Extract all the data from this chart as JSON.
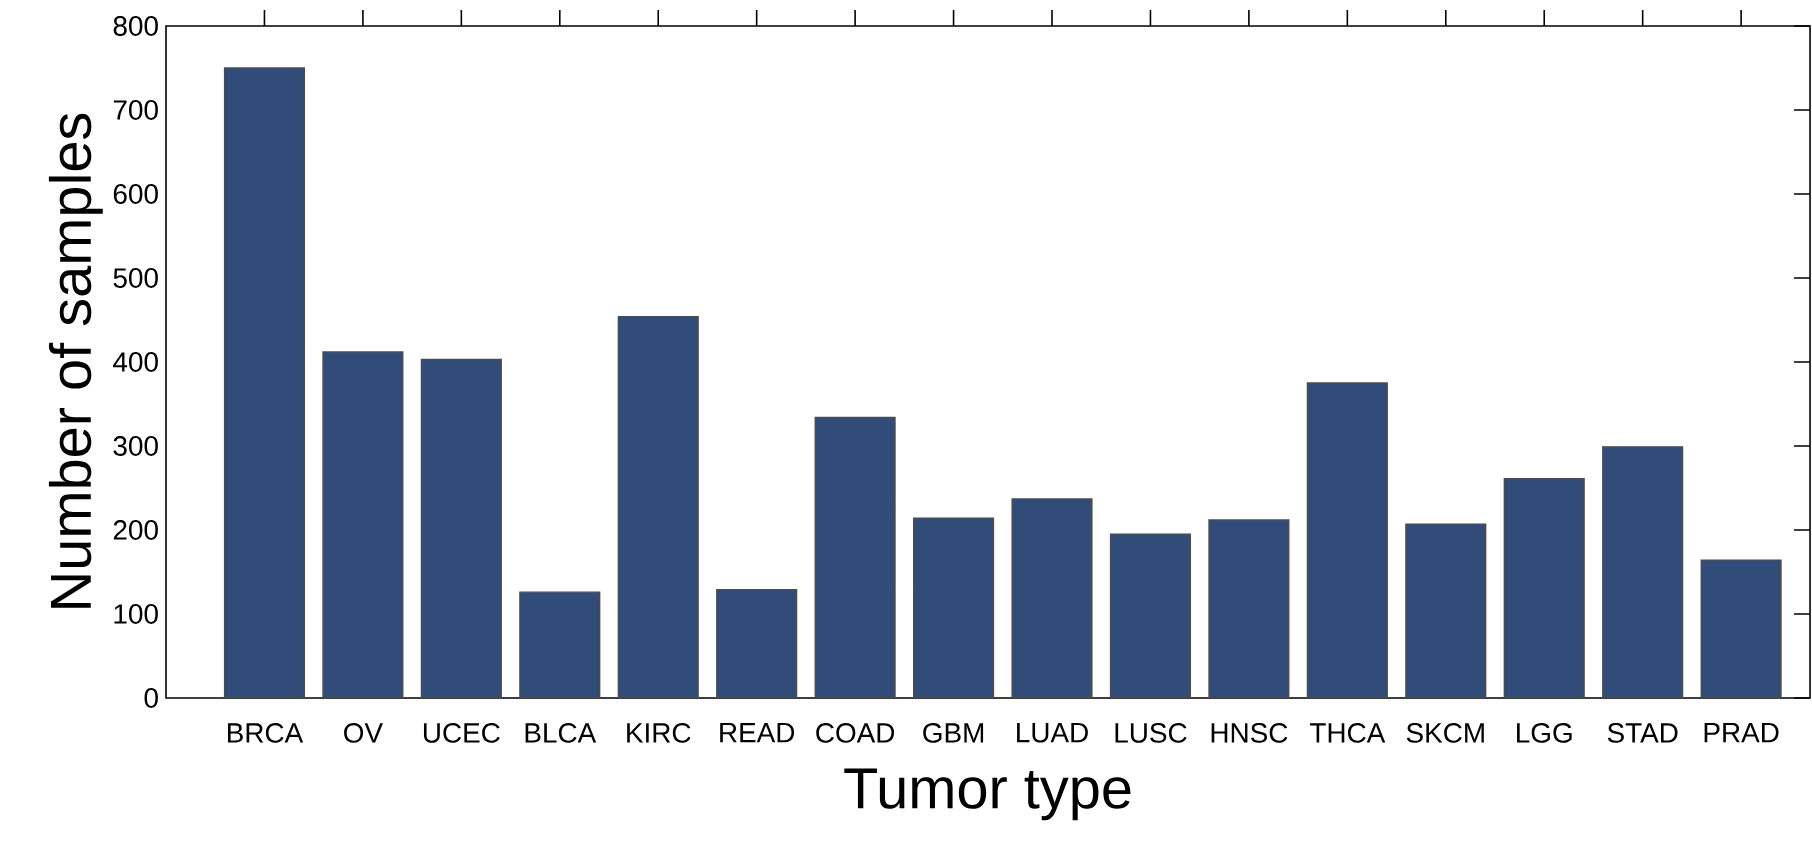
{
  "chart_data": {
    "type": "bar",
    "xlabel": "Tumor type",
    "ylabel": "Number of samples",
    "categories": [
      "BRCA",
      "OV",
      "UCEC",
      "BLCA",
      "KIRC",
      "READ",
      "COAD",
      "GBM",
      "LUAD",
      "LUSC",
      "HNSC",
      "THCA",
      "SKCM",
      "LGG",
      "STAD",
      "PRAD"
    ],
    "values": [
      750,
      412,
      403,
      126,
      454,
      129,
      334,
      214,
      237,
      195,
      212,
      375,
      207,
      261,
      299,
      164
    ],
    "color": "#324c7a",
    "ylim": [
      0,
      800
    ],
    "yticks": [
      0,
      100,
      200,
      300,
      400,
      500,
      600,
      700,
      800
    ],
    "grid": false
  }
}
